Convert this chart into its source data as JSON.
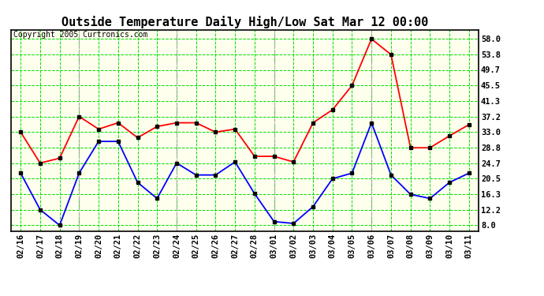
{
  "title": "Outside Temperature Daily High/Low Sat Mar 12 00:00",
  "copyright": "Copyright 2005 Curtronics.com",
  "labels": [
    "02/16",
    "02/17",
    "02/18",
    "02/19",
    "02/20",
    "02/21",
    "02/22",
    "02/23",
    "02/24",
    "02/25",
    "02/26",
    "02/27",
    "02/28",
    "03/01",
    "03/02",
    "03/03",
    "03/04",
    "03/05",
    "03/06",
    "03/07",
    "03/08",
    "03/09",
    "03/10",
    "03/11"
  ],
  "high_values": [
    33.0,
    24.7,
    26.0,
    37.2,
    33.8,
    35.5,
    31.5,
    34.5,
    35.5,
    35.5,
    33.0,
    33.8,
    26.5,
    26.5,
    25.0,
    35.5,
    39.0,
    45.5,
    58.0,
    53.8,
    28.8,
    28.8,
    32.0,
    35.0
  ],
  "low_values": [
    22.0,
    12.2,
    8.0,
    22.0,
    30.5,
    30.5,
    19.5,
    15.2,
    24.7,
    21.5,
    21.5,
    25.0,
    16.5,
    9.0,
    8.5,
    13.0,
    20.5,
    22.0,
    35.5,
    21.5,
    16.3,
    15.2,
    19.5,
    22.0
  ],
  "high_color": "#ff0000",
  "low_color": "#0000ff",
  "marker_color": "#000000",
  "bg_color": "#ffffff",
  "plot_bg_color": "#ffffee",
  "grid_color": "#00dd00",
  "gray_vline_color": "#aaaaaa",
  "gray_vline_positions": [
    3,
    8,
    13,
    18
  ],
  "yticks": [
    8.0,
    12.2,
    16.3,
    20.5,
    24.7,
    28.8,
    33.0,
    37.2,
    41.3,
    45.5,
    49.7,
    53.8,
    58.0
  ],
  "ylim": [
    6.5,
    60.5
  ],
  "title_fontsize": 11,
  "axis_fontsize": 7.5,
  "copyright_fontsize": 7,
  "marker_size": 3.5,
  "line_width": 1.3
}
